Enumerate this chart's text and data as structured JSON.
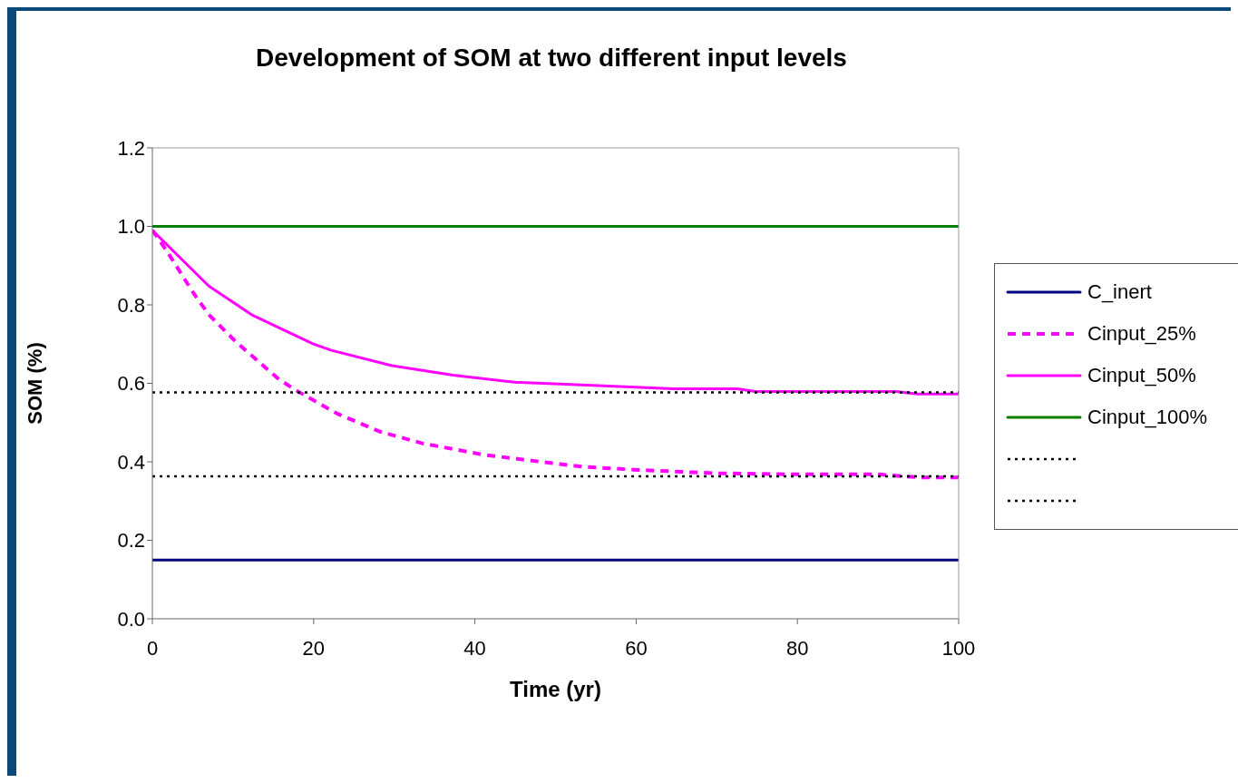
{
  "chart_data": {
    "type": "line",
    "title": "Development of SOM at two different input levels",
    "xlabel": "Time (yr)",
    "ylabel": "SOM (%)",
    "xlim": [
      0,
      100
    ],
    "xticks": [
      0,
      20,
      40,
      60,
      80,
      100
    ],
    "ylim": [
      0,
      1.2
    ],
    "yticks": [
      {
        "value": 0,
        "label": "0.0"
      },
      {
        "value": 0.2,
        "label": "0.2"
      },
      {
        "value": 0.4,
        "label": "0.4"
      },
      {
        "value": 0.6,
        "label": "0.6"
      },
      {
        "value": 0.8,
        "label": "0.8"
      },
      {
        "value": 1.0,
        "label": "1.0"
      },
      {
        "value": 1.2,
        "label": "1.2"
      }
    ],
    "grid": false,
    "legend": "right",
    "series": [
      {
        "name": "C_inert",
        "color": "#000080",
        "line_style": "solid",
        "x": [
          0,
          100
        ],
        "values": [
          0.15,
          0.15
        ]
      },
      {
        "name": "Cinput_25%",
        "color": "#ff00ff",
        "line_style": "dashed",
        "x": [
          0,
          1.7,
          5.1,
          7,
          10.4,
          15.7,
          18,
          22.9,
          28.2,
          33.5,
          41.1,
          50.6,
          53.6,
          59.7,
          69.5,
          79.4,
          90,
          95.3,
          100
        ],
        "values": [
          0.99,
          0.94,
          0.83,
          0.775,
          0.705,
          0.61,
          0.58,
          0.523,
          0.477,
          0.447,
          0.418,
          0.394,
          0.387,
          0.38,
          0.371,
          0.368,
          0.368,
          0.36,
          0.36
        ]
      },
      {
        "name": "Cinput_50%",
        "color": "#ff00ff",
        "line_style": "solid",
        "x": [
          0,
          7,
          12.3,
          19.9,
          22.2,
          29.7,
          37.3,
          44.9,
          50.6,
          64.6,
          72.5,
          74.8,
          92.2,
          94.9,
          100
        ],
        "values": [
          0.99,
          0.848,
          0.775,
          0.701,
          0.684,
          0.645,
          0.621,
          0.603,
          0.598,
          0.586,
          0.586,
          0.579,
          0.579,
          0.573,
          0.573
        ]
      },
      {
        "name": "Cinput_100%",
        "color": "#008000",
        "line_style": "solid",
        "x": [
          0,
          100
        ],
        "values": [
          1.0,
          1.0
        ]
      },
      {
        "color": "#000000",
        "line_style": "dotted",
        "x": [
          0,
          100
        ],
        "values": [
          0.577,
          0.577
        ]
      },
      {
        "color": "#000000",
        "line_style": "dotted",
        "x": [
          0,
          100
        ],
        "values": [
          0.363,
          0.363
        ]
      }
    ]
  }
}
